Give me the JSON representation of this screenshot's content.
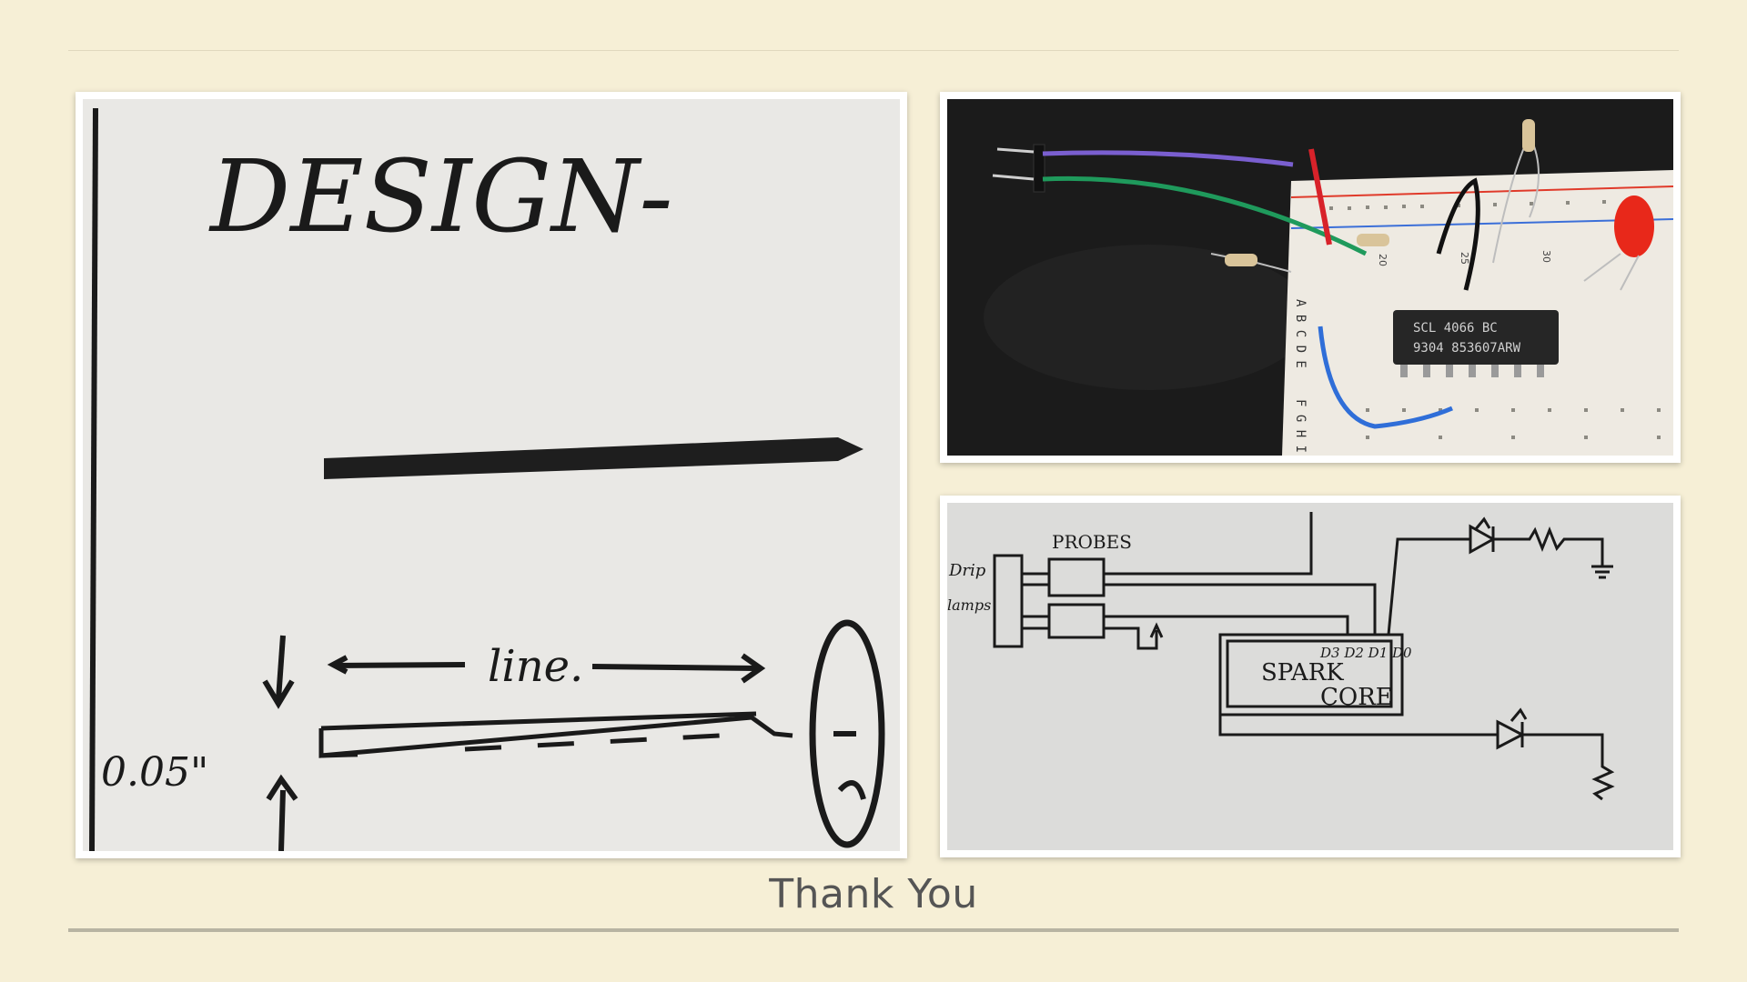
{
  "slide": {
    "caption": "Thank You"
  },
  "sketch_design": {
    "heading": "DESIGN-",
    "length_label": "line.",
    "thickness_label": "0.05\""
  },
  "breadboard_photo": {
    "chip_line1": "SCL 4066 BC",
    "chip_line2": "9304 853607ARW",
    "row_letters_top": "A B C D E",
    "row_letters_bottom": "F G H I J",
    "column_labels": [
      "20",
      "25",
      "30"
    ]
  },
  "circuit_sketch": {
    "probes_label": "PROBES",
    "drip_label": "Drip",
    "lamps_label": "lamps",
    "core_label_1": "SPARK",
    "core_label_2": "CORE",
    "pins_label": "D3 D2 D1 D0"
  },
  "colors": {
    "background": "#f6efd6",
    "caption": "#555555",
    "ink": "#1a1a1a",
    "wire_purple": "#7a5fd0",
    "wire_green": "#1f9a5c",
    "wire_blue": "#2f6ed8",
    "led_red": "#e8281a"
  }
}
